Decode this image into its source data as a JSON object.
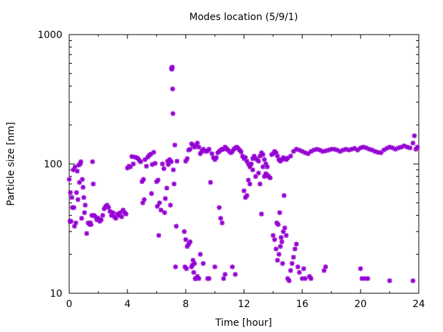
{
  "chart_data": {
    "type": "scatter",
    "title": "Modes location (5/9/1)",
    "xlabel": "Time [hour]",
    "ylabel": "Particle size [nm]",
    "xlim": [
      0,
      24
    ],
    "ylim": [
      10,
      1000
    ],
    "yscale": "log",
    "grid": false,
    "legend": "none",
    "marker_color": "#9400d3",
    "xticks": [
      {
        "value": 0,
        "label": "0"
      },
      {
        "value": 4,
        "label": "4"
      },
      {
        "value": 8,
        "label": "8"
      },
      {
        "value": 12,
        "label": "12"
      },
      {
        "value": 16,
        "label": "16"
      },
      {
        "value": 20,
        "label": "20"
      },
      {
        "value": 24,
        "label": "24"
      }
    ],
    "yticks": [
      {
        "value": 10,
        "label": "10"
      },
      {
        "value": 100,
        "label": "100"
      },
      {
        "value": 1000,
        "label": "1000"
      }
    ],
    "series": [
      {
        "points": [
          [
            0.0,
            76
          ],
          [
            0.05,
            36
          ],
          [
            0.08,
            60
          ],
          [
            0.12,
            36
          ],
          [
            0.18,
            55
          ],
          [
            0.22,
            46
          ],
          [
            0.28,
            90
          ],
          [
            0.32,
            46
          ],
          [
            0.36,
            33
          ],
          [
            0.4,
            95
          ],
          [
            0.45,
            35
          ],
          [
            0.5,
            60
          ],
          [
            0.55,
            88
          ],
          [
            0.6,
            53
          ],
          [
            0.65,
            98
          ],
          [
            0.7,
            72
          ],
          [
            0.75,
            100
          ],
          [
            0.8,
            104
          ],
          [
            0.85,
            38
          ],
          [
            0.9,
            76
          ],
          [
            0.95,
            66
          ],
          [
            1.0,
            55
          ],
          [
            1.05,
            42
          ],
          [
            1.1,
            48
          ],
          [
            1.2,
            29
          ],
          [
            1.3,
            35
          ],
          [
            1.4,
            34
          ],
          [
            1.45,
            35
          ],
          [
            1.5,
            34
          ],
          [
            1.55,
            40
          ],
          [
            1.6,
            104
          ],
          [
            1.65,
            70
          ],
          [
            1.7,
            40
          ],
          [
            1.8,
            39
          ],
          [
            1.9,
            37
          ],
          [
            2.0,
            38
          ],
          [
            2.1,
            36
          ],
          [
            2.2,
            37
          ],
          [
            2.3,
            40
          ],
          [
            2.4,
            45
          ],
          [
            2.5,
            47
          ],
          [
            2.6,
            48
          ],
          [
            2.7,
            46
          ],
          [
            2.8,
            43
          ],
          [
            2.9,
            40
          ],
          [
            3.0,
            42
          ],
          [
            3.1,
            39
          ],
          [
            3.2,
            38
          ],
          [
            3.3,
            41
          ],
          [
            3.4,
            40
          ],
          [
            3.5,
            42
          ],
          [
            3.6,
            39
          ],
          [
            3.7,
            44
          ],
          [
            3.8,
            42
          ],
          [
            3.9,
            41
          ],
          [
            4.0,
            93
          ],
          [
            4.1,
            96
          ],
          [
            4.2,
            95
          ],
          [
            4.3,
            114
          ],
          [
            4.4,
            100
          ],
          [
            4.5,
            113
          ],
          [
            4.6,
            112
          ],
          [
            4.7,
            111
          ],
          [
            4.8,
            107
          ],
          [
            4.9,
            104
          ],
          [
            5.0,
            73
          ],
          [
            5.05,
            50
          ],
          [
            5.1,
            76
          ],
          [
            5.15,
            53
          ],
          [
            5.2,
            108
          ],
          [
            5.3,
            96
          ],
          [
            5.4,
            113
          ],
          [
            5.5,
            117
          ],
          [
            5.6,
            119
          ],
          [
            5.65,
            59
          ],
          [
            5.7,
            99
          ],
          [
            5.8,
            123
          ],
          [
            5.9,
            101
          ],
          [
            6.0,
            73
          ],
          [
            6.05,
            47
          ],
          [
            6.1,
            75
          ],
          [
            6.15,
            28
          ],
          [
            6.2,
            50
          ],
          [
            6.3,
            44
          ],
          [
            6.4,
            100
          ],
          [
            6.5,
            92
          ],
          [
            6.55,
            42
          ],
          [
            6.6,
            54
          ],
          [
            6.7,
            65
          ],
          [
            6.75,
            105
          ],
          [
            6.8,
            99
          ],
          [
            6.9,
            108
          ],
          [
            6.95,
            48
          ],
          [
            7.0,
            104
          ],
          [
            7.02,
            550
          ],
          [
            7.05,
            540
          ],
          [
            7.08,
            560
          ],
          [
            7.1,
            380
          ],
          [
            7.12,
            245
          ],
          [
            7.15,
            90
          ],
          [
            7.2,
            70
          ],
          [
            7.25,
            140
          ],
          [
            7.3,
            16
          ],
          [
            7.35,
            33
          ],
          [
            7.4,
            105
          ],
          [
            8.0,
            105
          ],
          [
            8.1,
            110
          ],
          [
            8.2,
            128
          ],
          [
            8.3,
            130
          ],
          [
            8.4,
            143
          ],
          [
            8.5,
            140
          ],
          [
            8.6,
            135
          ],
          [
            8.7,
            138
          ],
          [
            8.8,
            145
          ],
          [
            8.9,
            135
          ],
          [
            9.0,
            120
          ],
          [
            9.1,
            125
          ],
          [
            9.2,
            130
          ],
          [
            9.3,
            127
          ],
          [
            9.4,
            125
          ],
          [
            9.5,
            126
          ],
          [
            9.6,
            130
          ],
          [
            9.8,
            120
          ],
          [
            9.9,
            112
          ],
          [
            10.0,
            108
          ],
          [
            10.1,
            112
          ],
          [
            10.2,
            122
          ],
          [
            10.3,
            125
          ],
          [
            10.4,
            128
          ],
          [
            10.5,
            130
          ],
          [
            10.6,
            130
          ],
          [
            10.7,
            135
          ],
          [
            10.8,
            132
          ],
          [
            10.9,
            128
          ],
          [
            11.0,
            125
          ],
          [
            11.1,
            122
          ],
          [
            11.2,
            125
          ],
          [
            11.3,
            130
          ],
          [
            11.4,
            133
          ],
          [
            11.5,
            135
          ],
          [
            11.6,
            132
          ],
          [
            11.7,
            128
          ],
          [
            11.8,
            124
          ],
          [
            11.9,
            115
          ],
          [
            12.0,
            110
          ],
          [
            12.1,
            112
          ],
          [
            12.2,
            105
          ],
          [
            12.3,
            100
          ],
          [
            12.4,
            95
          ],
          [
            12.5,
            100
          ],
          [
            12.6,
            110
          ],
          [
            12.7,
            115
          ],
          [
            12.8,
            110
          ],
          [
            12.9,
            108
          ],
          [
            13.0,
            105
          ],
          [
            13.1,
            115
          ],
          [
            13.2,
            122
          ],
          [
            13.3,
            118
          ],
          [
            13.4,
            108
          ],
          [
            13.5,
            100
          ],
          [
            13.6,
            95
          ],
          [
            13.7,
            80
          ],
          [
            13.8,
            78
          ],
          [
            13.9,
            118
          ],
          [
            14.0,
            120
          ],
          [
            14.1,
            125
          ],
          [
            14.2,
            122
          ],
          [
            14.3,
            115
          ],
          [
            14.4,
            108
          ],
          [
            14.5,
            105
          ],
          [
            14.6,
            108
          ],
          [
            14.7,
            112
          ],
          [
            14.8,
            110
          ],
          [
            14.9,
            108
          ],
          [
            15.0,
            111
          ],
          [
            15.2,
            115
          ],
          [
            15.4,
            125
          ],
          [
            15.6,
            130
          ],
          [
            15.8,
            128
          ],
          [
            16.0,
            125
          ],
          [
            16.2,
            122
          ],
          [
            16.4,
            120
          ],
          [
            16.6,
            125
          ],
          [
            16.8,
            128
          ],
          [
            17.0,
            130
          ],
          [
            17.2,
            128
          ],
          [
            17.4,
            125
          ],
          [
            17.6,
            126
          ],
          [
            17.8,
            128
          ],
          [
            18.0,
            130
          ],
          [
            18.2,
            130
          ],
          [
            18.4,
            128
          ],
          [
            18.6,
            125
          ],
          [
            18.8,
            128
          ],
          [
            19.0,
            130
          ],
          [
            19.2,
            128
          ],
          [
            19.4,
            130
          ],
          [
            19.6,
            132
          ],
          [
            19.8,
            128
          ],
          [
            20.0,
            133
          ],
          [
            20.2,
            135
          ],
          [
            20.4,
            133
          ],
          [
            20.6,
            130
          ],
          [
            20.8,
            128
          ],
          [
            21.0,
            125
          ],
          [
            21.2,
            123
          ],
          [
            21.4,
            122
          ],
          [
            21.6,
            128
          ],
          [
            21.8,
            132
          ],
          [
            22.0,
            135
          ],
          [
            22.2,
            133
          ],
          [
            22.4,
            130
          ],
          [
            22.6,
            133
          ],
          [
            22.8,
            135
          ],
          [
            23.0,
            138
          ],
          [
            23.2,
            135
          ],
          [
            23.4,
            133
          ],
          [
            23.6,
            145
          ],
          [
            23.7,
            165
          ],
          [
            23.8,
            130
          ],
          [
            23.9,
            135
          ],
          [
            7.9,
            30
          ],
          [
            8.0,
            26
          ],
          [
            8.1,
            23
          ],
          [
            8.2,
            24
          ],
          [
            8.3,
            25
          ],
          [
            8.5,
            18
          ],
          [
            8.6,
            17
          ],
          [
            8.65,
            13
          ],
          [
            8.7,
            13
          ],
          [
            8.8,
            13.5
          ],
          [
            8.9,
            13
          ],
          [
            9.0,
            20
          ],
          [
            9.2,
            17
          ],
          [
            9.5,
            13
          ],
          [
            9.6,
            13
          ],
          [
            9.7,
            72
          ],
          [
            10.0,
            16
          ],
          [
            10.3,
            46
          ],
          [
            10.4,
            38
          ],
          [
            10.5,
            35
          ],
          [
            10.6,
            13
          ],
          [
            10.7,
            14
          ],
          [
            11.2,
            16
          ],
          [
            11.4,
            14
          ],
          [
            12.0,
            62
          ],
          [
            12.1,
            55
          ],
          [
            12.2,
            57
          ],
          [
            12.3,
            75
          ],
          [
            12.4,
            70
          ],
          [
            12.6,
            90
          ],
          [
            12.8,
            80
          ],
          [
            13.0,
            85
          ],
          [
            13.1,
            70
          ],
          [
            13.2,
            41
          ],
          [
            13.3,
            95
          ],
          [
            13.4,
            80
          ],
          [
            13.5,
            84
          ],
          [
            13.6,
            82
          ],
          [
            14.0,
            28
          ],
          [
            14.1,
            26
          ],
          [
            14.2,
            22
          ],
          [
            14.3,
            18
          ],
          [
            14.4,
            20
          ],
          [
            14.5,
            23
          ],
          [
            14.6,
            25
          ],
          [
            14.7,
            30
          ],
          [
            14.8,
            32
          ],
          [
            14.9,
            28
          ],
          [
            15.0,
            13
          ],
          [
            15.1,
            12.5
          ],
          [
            15.2,
            15
          ],
          [
            15.3,
            17
          ],
          [
            15.4,
            19
          ],
          [
            15.5,
            22
          ],
          [
            15.6,
            24
          ],
          [
            15.7,
            16
          ],
          [
            15.8,
            14.5
          ],
          [
            16.0,
            13
          ],
          [
            16.1,
            15.5
          ],
          [
            16.2,
            13
          ],
          [
            16.5,
            13.5
          ],
          [
            16.6,
            13
          ],
          [
            17.5,
            15
          ],
          [
            17.6,
            16
          ],
          [
            20.0,
            15.5
          ],
          [
            20.1,
            13
          ],
          [
            20.3,
            13
          ],
          [
            20.5,
            13
          ],
          [
            22.0,
            12.5
          ],
          [
            23.6,
            12.5
          ],
          [
            7.95,
            16
          ],
          [
            8.05,
            15.5
          ],
          [
            8.4,
            16
          ],
          [
            8.45,
            16.5
          ],
          [
            8.55,
            14.5
          ],
          [
            14.25,
            35
          ],
          [
            14.35,
            34
          ],
          [
            14.45,
            42
          ],
          [
            14.55,
            27
          ],
          [
            14.65,
            17
          ],
          [
            14.75,
            57
          ]
        ]
      }
    ]
  }
}
